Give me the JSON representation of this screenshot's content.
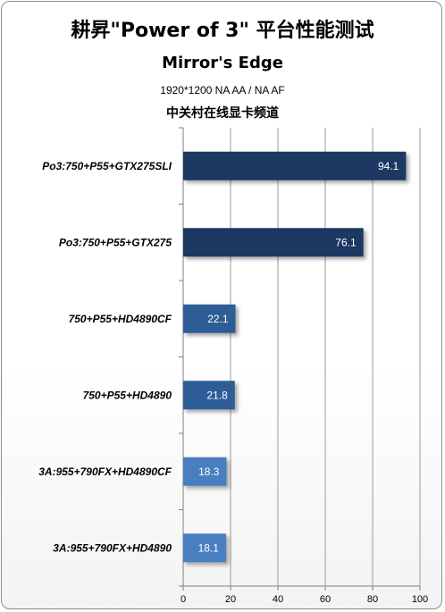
{
  "chart_data": {
    "type": "bar",
    "orientation": "horizontal",
    "title": "耕昇\"Power of 3\" 平台性能测试",
    "subtitle": "Mirror's Edge",
    "setting": "1920*1200 NA AA / NA AF",
    "source": "中关村在线显卡频道",
    "categories": [
      "Po3:750+P55+GTX275SLI",
      "Po3:750+P55+GTX275",
      "750+P55+HD4890CF",
      "750+P55+HD4890",
      "3A:955+790FX+HD4890CF",
      "3A:955+790FX+HD4890"
    ],
    "values": [
      94.1,
      76.1,
      22.1,
      21.8,
      18.3,
      18.1
    ],
    "value_labels": [
      "94.1",
      "76.1",
      "22.1",
      "21.8",
      "18.3",
      "18.1"
    ],
    "bar_colors": [
      "#1f3864",
      "#1f3864",
      "#2e5c96",
      "#2e5c96",
      "#4a7fc1",
      "#4a7fc1"
    ],
    "xlim": [
      0,
      100
    ],
    "x_ticks": [
      "0",
      "20",
      "40",
      "60",
      "80",
      "100"
    ],
    "grid": true
  }
}
